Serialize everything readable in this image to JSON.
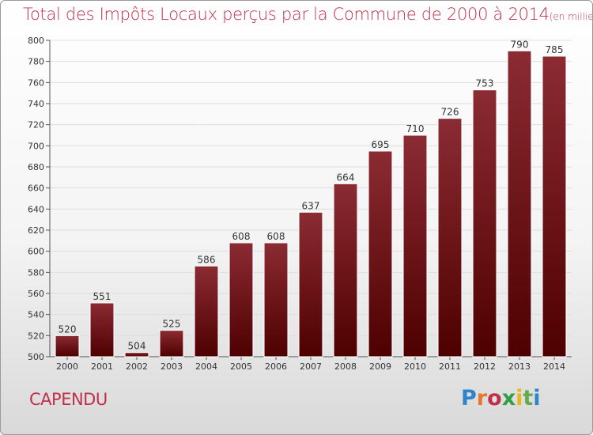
{
  "page": {
    "title": "Total des Impôts Locaux perçus par la Commune de 2000 à 2014",
    "unit": "(en milliers d'€)",
    "commune": "CAPENDU",
    "logo": "Proxiti"
  },
  "colors": {
    "bar_top": "#8b2b33",
    "bar_bottom": "#4e0000",
    "title": "#c0304a",
    "logo": [
      "#2e86c8",
      "#e8762b",
      "#c0304a",
      "#2ea043",
      "#e6b81a",
      "#6aa84f",
      "#2e86c8"
    ]
  },
  "chart_data": {
    "type": "bar",
    "title": "Total des Impôts Locaux perçus par la Commune de 2000 à 2014",
    "unit": "(en milliers d'€)",
    "categories": [
      "2000",
      "2001",
      "2002",
      "2003",
      "2004",
      "2005",
      "2006",
      "2007",
      "2008",
      "2009",
      "2010",
      "2011",
      "2012",
      "2013",
      "2014"
    ],
    "values": [
      520,
      551,
      504,
      525,
      586,
      608,
      608,
      637,
      664,
      695,
      710,
      726,
      753,
      790,
      785
    ],
    "ylim": [
      500,
      800
    ],
    "yticks": [
      500,
      520,
      540,
      560,
      580,
      600,
      620,
      640,
      660,
      680,
      700,
      720,
      740,
      760,
      780,
      800
    ],
    "grid": "horizontal",
    "data_labels": true
  }
}
